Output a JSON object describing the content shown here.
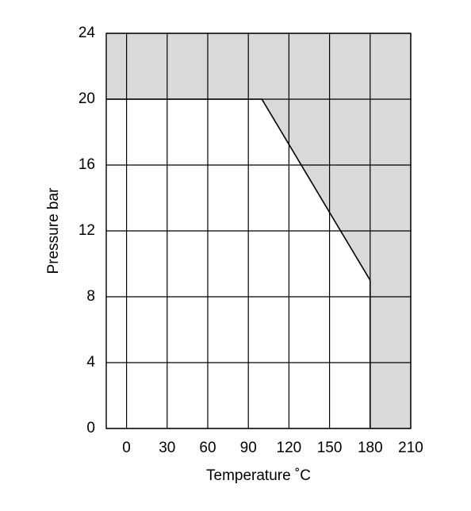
{
  "chart_data": {
    "type": "line",
    "x_label": "Temperature ˚C",
    "y_label": "Pressure bar",
    "x": [
      -15,
      100,
      180,
      180
    ],
    "values": [
      20,
      20,
      9,
      0
    ],
    "color": "#000000",
    "fill_above_color": "#d9d9d9",
    "xlim": [
      -15,
      210
    ],
    "xticks": [
      0,
      30,
      60,
      90,
      120,
      150,
      180,
      210
    ],
    "ylim": [
      0,
      24
    ],
    "yticks": [
      0,
      4,
      8,
      12,
      16,
      20,
      24
    ],
    "grid": true
  }
}
